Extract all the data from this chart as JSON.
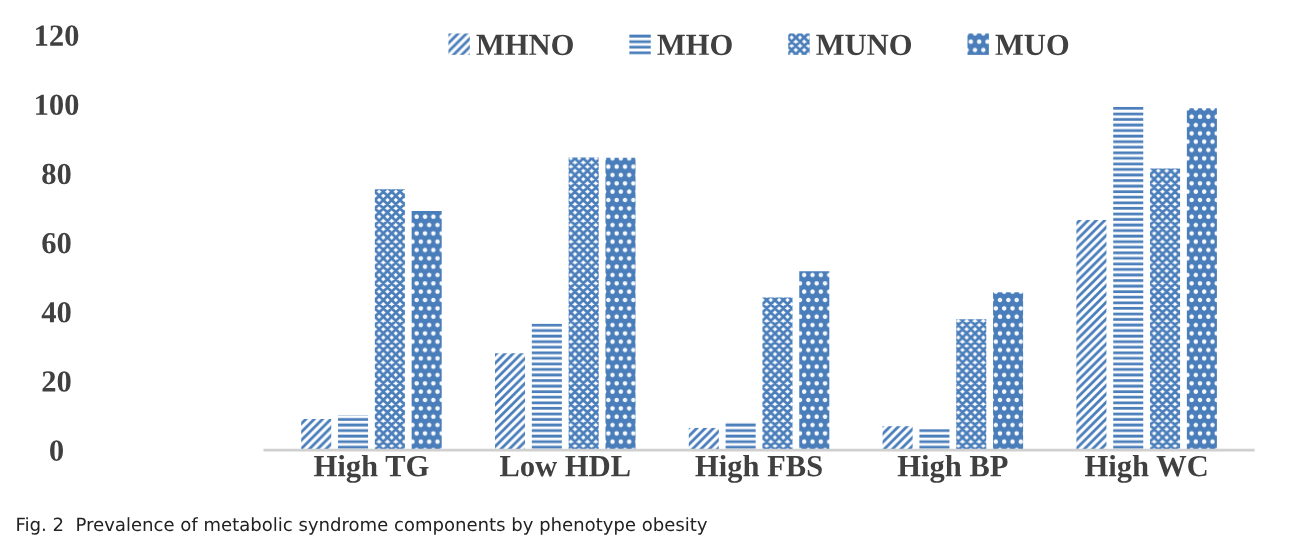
{
  "chart_data": {
    "type": "bar",
    "categories": [
      "High TG",
      "Low HDL",
      "High FBS",
      "High BP",
      "High WC"
    ],
    "series": [
      {
        "name": "MHNO",
        "color": "#4a7ebb",
        "values": [
          9.0,
          28.0,
          6.4,
          6.9,
          66.5
        ]
      },
      {
        "name": "MHO",
        "color": "#4a7ebb",
        "values": [
          10.1,
          36.5,
          8.3,
          6.1,
          99.3
        ]
      },
      {
        "name": "MUNO",
        "color": "#4a7ebb",
        "values": [
          75.4,
          84.6,
          44.1,
          37.8,
          81.4
        ]
      },
      {
        "name": "MUO",
        "color": "#4a7ebb",
        "values": [
          69.1,
          84.5,
          51.7,
          45.6,
          98.8
        ]
      }
    ],
    "ylim": [
      0,
      120
    ],
    "yticks": [
      0,
      20,
      40,
      60,
      80,
      100,
      120
    ],
    "grid": false,
    "legend": "top",
    "annotations": [
      "Fig. 2  Prevalence of metabolic syndrome components by phenotype obesity"
    ]
  }
}
